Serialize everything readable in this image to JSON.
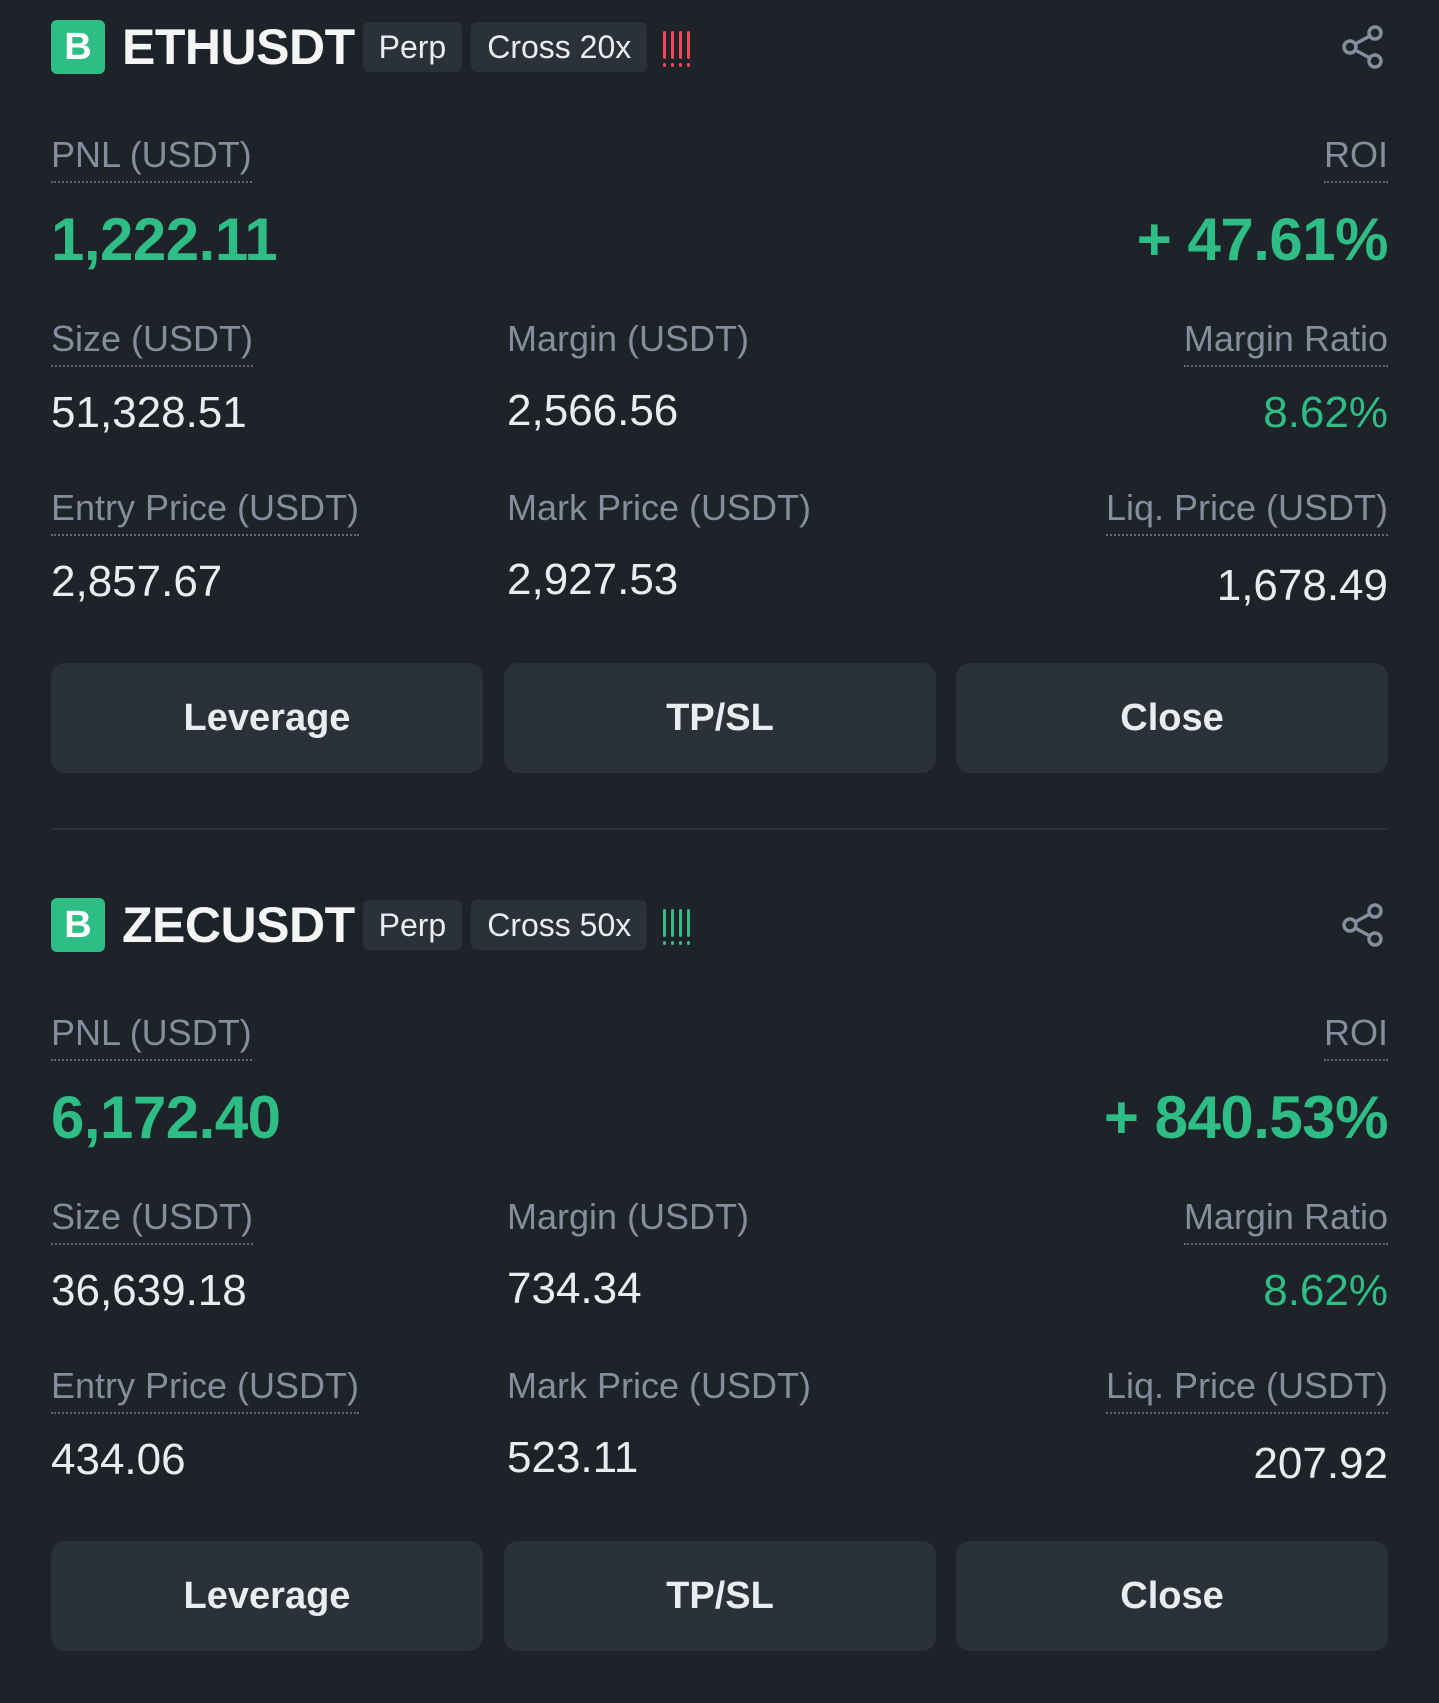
{
  "positions": [
    {
      "exchange_badge": "B",
      "symbol": "ETHUSDT",
      "type_tag": "Perp",
      "margin_mode_tag": "Cross 20x",
      "risk_indicator": "!!!!",
      "risk_color": "#f6465d",
      "pnl_label": "PNL (USDT)",
      "pnl_value": "1,222.11",
      "roi_label": "ROI",
      "roi_value": "+ 47.61%",
      "size_label": "Size (USDT)",
      "size_value": "51,328.51",
      "margin_label": "Margin (USDT)",
      "margin_value": "2,566.56",
      "margin_ratio_label": "Margin Ratio",
      "margin_ratio_value": "8.62%",
      "entry_price_label": "Entry Price (USDT)",
      "entry_price_value": "2,857.67",
      "mark_price_label": "Mark Price (USDT)",
      "mark_price_value": "2,927.53",
      "liq_price_label": "Liq. Price (USDT)",
      "liq_price_value": "1,678.49",
      "buttons": {
        "leverage": "Leverage",
        "tpsl": "TP/SL",
        "close": "Close"
      }
    },
    {
      "exchange_badge": "B",
      "symbol": "ZECUSDT",
      "type_tag": "Perp",
      "margin_mode_tag": "Cross 50x",
      "risk_indicator": "!!!!",
      "risk_color": "#2ebd85",
      "pnl_label": "PNL (USDT)",
      "pnl_value": "6,172.40",
      "roi_label": "ROI",
      "roi_value": "+ 840.53%",
      "size_label": "Size (USDT)",
      "size_value": "36,639.18",
      "margin_label": "Margin (USDT)",
      "margin_value": "734.34",
      "margin_ratio_label": "Margin Ratio",
      "margin_ratio_value": "8.62%",
      "entry_price_label": "Entry Price (USDT)",
      "entry_price_value": "434.06",
      "mark_price_label": "Mark Price (USDT)",
      "mark_price_value": "523.11",
      "liq_price_label": "Liq. Price (USDT)",
      "liq_price_value": "207.92",
      "buttons": {
        "leverage": "Leverage",
        "tpsl": "TP/SL",
        "close": "Close"
      }
    }
  ],
  "colors": {
    "background": "#1e2329",
    "profit": "#2ebd85",
    "loss": "#f6465d",
    "button": "#2b3139"
  },
  "icons": {
    "share": "share-icon"
  }
}
